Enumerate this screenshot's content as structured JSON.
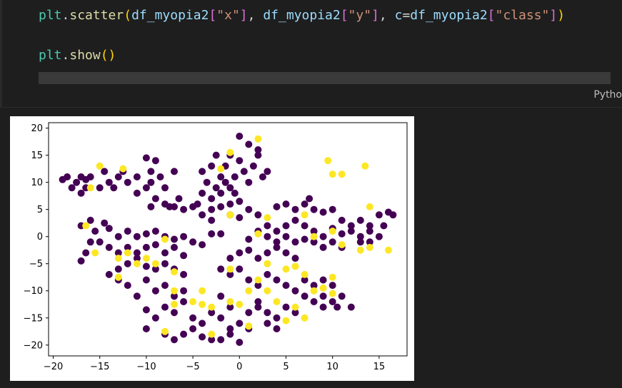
{
  "cell": {
    "code_lines": [
      [
        {
          "t": "plt",
          "c": "tok-var"
        },
        {
          "t": ".",
          "c": "tok-punc"
        },
        {
          "t": "scatter",
          "c": "tok-func"
        },
        {
          "t": "(",
          "c": "tok-bracket"
        },
        {
          "t": "df_myopia2",
          "c": "tok-ident"
        },
        {
          "t": "[",
          "c": "tok-bracket2"
        },
        {
          "t": "\"x\"",
          "c": "tok-str"
        },
        {
          "t": "]",
          "c": "tok-bracket2"
        },
        {
          "t": ", ",
          "c": "tok-punc"
        },
        {
          "t": "df_myopia2",
          "c": "tok-ident"
        },
        {
          "t": "[",
          "c": "tok-bracket2"
        },
        {
          "t": "\"y\"",
          "c": "tok-str"
        },
        {
          "t": "]",
          "c": "tok-bracket2"
        },
        {
          "t": ", ",
          "c": "tok-punc"
        },
        {
          "t": "c",
          "c": "tok-kw"
        },
        {
          "t": "=",
          "c": "tok-punc"
        },
        {
          "t": "df_myopia2",
          "c": "tok-ident"
        },
        {
          "t": "[",
          "c": "tok-bracket2"
        },
        {
          "t": "\"class\"",
          "c": "tok-str"
        },
        {
          "t": "]",
          "c": "tok-bracket2"
        },
        {
          "t": ")",
          "c": "tok-bracket"
        }
      ],
      [],
      [
        {
          "t": "plt",
          "c": "tok-var"
        },
        {
          "t": ".",
          "c": "tok-punc"
        },
        {
          "t": "show",
          "c": "tok-func"
        },
        {
          "t": "()",
          "c": "tok-bracket"
        }
      ]
    ],
    "language_label": "Pytho"
  },
  "chart_data": {
    "type": "scatter",
    "title": "",
    "xlabel": "",
    "ylabel": "",
    "xlim": [
      -20.5,
      18
    ],
    "ylim": [
      -22,
      21
    ],
    "xticks": [
      -20,
      -15,
      -10,
      -5,
      0,
      5,
      10,
      15
    ],
    "yticks": [
      -20,
      -15,
      -10,
      -5,
      0,
      5,
      10,
      15,
      20
    ],
    "grid": false,
    "colors": {
      "class_0": "#440154",
      "class_1": "#fde725"
    },
    "series": [
      {
        "values_xy": [
          [
            -19,
            10.5
          ],
          [
            -18.5,
            11
          ],
          [
            -18,
            9
          ],
          [
            -17.5,
            10
          ],
          [
            -17,
            11
          ],
          [
            -16.5,
            10.5
          ],
          [
            -16,
            11
          ],
          [
            -16.5,
            9
          ],
          [
            -17,
            8
          ],
          [
            -15,
            9
          ],
          [
            -14,
            10
          ],
          [
            -13.5,
            9
          ],
          [
            -14.5,
            12
          ],
          [
            -13,
            11
          ],
          [
            -12.5,
            12
          ],
          [
            -12,
            10
          ],
          [
            -11,
            11
          ],
          [
            -10,
            14.5
          ],
          [
            -9.5,
            12
          ],
          [
            -9,
            14
          ],
          [
            -9.5,
            10
          ],
          [
            -10,
            9
          ],
          [
            -11,
            8
          ],
          [
            -9,
            7
          ],
          [
            -9.5,
            5.5
          ],
          [
            -8,
            6
          ],
          [
            -7.5,
            5.5
          ],
          [
            -8,
            9
          ],
          [
            -8.5,
            11
          ],
          [
            -7,
            12
          ],
          [
            -4,
            12
          ],
          [
            -3.5,
            10
          ],
          [
            -3,
            13
          ],
          [
            -2.5,
            15
          ],
          [
            -2,
            11
          ],
          [
            -1.5,
            13
          ],
          [
            -1,
            9
          ],
          [
            -0.5,
            11
          ],
          [
            0,
            14
          ],
          [
            0.5,
            12
          ],
          [
            1,
            10
          ],
          [
            1.5,
            13
          ],
          [
            2,
            15
          ],
          [
            2.5,
            11
          ],
          [
            3,
            12
          ],
          [
            2,
            16
          ],
          [
            1,
            17
          ],
          [
            0,
            18.5
          ],
          [
            -1,
            15
          ],
          [
            -2,
            8
          ],
          [
            -3,
            7
          ],
          [
            -4,
            8
          ],
          [
            -4.5,
            6
          ],
          [
            -3,
            5
          ],
          [
            -2,
            5.5
          ],
          [
            -1,
            6
          ],
          [
            0,
            6.5
          ],
          [
            -0.5,
            8
          ],
          [
            -1.5,
            10
          ],
          [
            -2.5,
            9
          ],
          [
            -5,
            5.5
          ],
          [
            -6,
            5
          ],
          [
            -7,
            5.5
          ],
          [
            -6.5,
            7
          ],
          [
            -4,
            4
          ],
          [
            -3,
            3
          ],
          [
            -1,
            4
          ],
          [
            0,
            3.5
          ],
          [
            1,
            5
          ],
          [
            2,
            4
          ],
          [
            4,
            5.5
          ],
          [
            5,
            6
          ],
          [
            6,
            5
          ],
          [
            7,
            6
          ],
          [
            7.5,
            7
          ],
          [
            8,
            5
          ],
          [
            9,
            4.5
          ],
          [
            10,
            5
          ],
          [
            11,
            3
          ],
          [
            12,
            2
          ],
          [
            13,
            3
          ],
          [
            14,
            2
          ],
          [
            15,
            4
          ],
          [
            16,
            4.5
          ],
          [
            16.5,
            4
          ],
          [
            15.5,
            2
          ],
          [
            3,
            2
          ],
          [
            4,
            1
          ],
          [
            5,
            2
          ],
          [
            6,
            3
          ],
          [
            7,
            2
          ],
          [
            8,
            1
          ],
          [
            9,
            0
          ],
          [
            10,
            1.5
          ],
          [
            11,
            0.5
          ],
          [
            12,
            1
          ],
          [
            13,
            0
          ],
          [
            14,
            1
          ],
          [
            15,
            0
          ],
          [
            14,
            -1
          ],
          [
            13,
            -1
          ],
          [
            11,
            -2
          ],
          [
            10,
            -1
          ],
          [
            9,
            -2
          ],
          [
            8,
            -1
          ],
          [
            7,
            -0.5
          ],
          [
            6,
            -1
          ],
          [
            5,
            0
          ],
          [
            4,
            -1
          ],
          [
            3,
            0
          ],
          [
            2,
            1
          ],
          [
            1,
            -0.5
          ],
          [
            -17,
            2
          ],
          [
            -16,
            3
          ],
          [
            -15.5,
            1
          ],
          [
            -14.5,
            2.5
          ],
          [
            -14,
            1.5
          ],
          [
            -13,
            0
          ],
          [
            -12,
            1
          ],
          [
            -11,
            0
          ],
          [
            -10,
            0.5
          ],
          [
            -9,
            1
          ],
          [
            -8,
            0
          ],
          [
            -7,
            -0.5
          ],
          [
            -6,
            0
          ],
          [
            -5,
            -1
          ],
          [
            -4,
            -1.5
          ],
          [
            -3,
            0.5
          ],
          [
            -2,
            0.5
          ],
          [
            -15,
            -1
          ],
          [
            -14,
            -2
          ],
          [
            -13,
            -3
          ],
          [
            -12,
            -2
          ],
          [
            -11,
            -3
          ],
          [
            -10,
            -2
          ],
          [
            -9,
            -1.5
          ],
          [
            -8,
            -3
          ],
          [
            -7,
            -2
          ],
          [
            -6,
            -3.5
          ],
          [
            -16,
            -1
          ],
          [
            -16.5,
            -3
          ],
          [
            -17,
            -4.5
          ],
          [
            -14,
            -7
          ],
          [
            -13,
            -6
          ],
          [
            -12,
            -5
          ],
          [
            -11,
            -4
          ],
          [
            -10,
            -5.5
          ],
          [
            -9,
            -6
          ],
          [
            -8,
            -5
          ],
          [
            -7,
            -6
          ],
          [
            -6,
            -7
          ],
          [
            -10,
            -8
          ],
          [
            -9,
            -10
          ],
          [
            -8,
            -9
          ],
          [
            -7,
            -11
          ],
          [
            -6,
            -10
          ],
          [
            -11,
            -11
          ],
          [
            -12,
            -9
          ],
          [
            -13,
            -8
          ],
          [
            -2,
            -6
          ],
          [
            -1,
            -4
          ],
          [
            0,
            -3
          ],
          [
            1,
            -2.5
          ],
          [
            2,
            -4
          ],
          [
            3,
            -3
          ],
          [
            4,
            -2
          ],
          [
            5,
            -3
          ],
          [
            6,
            -4
          ],
          [
            -1,
            -7
          ],
          [
            0,
            -6
          ],
          [
            1,
            -8
          ],
          [
            2,
            -9
          ],
          [
            3,
            -7
          ],
          [
            4,
            -8
          ],
          [
            5,
            -9
          ],
          [
            6,
            -10
          ],
          [
            7,
            -11
          ],
          [
            8,
            -12
          ],
          [
            9,
            -13
          ],
          [
            10,
            -12
          ],
          [
            11,
            -11
          ],
          [
            12,
            -13
          ],
          [
            7,
            -8
          ],
          [
            8,
            -9
          ],
          [
            9,
            -8
          ],
          [
            10,
            -9
          ],
          [
            -8,
            -13
          ],
          [
            -7,
            -14
          ],
          [
            -6,
            -12
          ],
          [
            -5,
            -15
          ],
          [
            -4,
            -16
          ],
          [
            -3,
            -14
          ],
          [
            -2,
            -15
          ],
          [
            -1,
            -17
          ],
          [
            0,
            -16
          ],
          [
            1,
            -14
          ],
          [
            2,
            -13
          ],
          [
            3,
            -14
          ],
          [
            4,
            -15
          ],
          [
            5,
            -13
          ],
          [
            -9,
            -15
          ],
          [
            -10,
            -17
          ],
          [
            -8,
            -18
          ],
          [
            -6,
            -18
          ],
          [
            -5,
            -17
          ],
          [
            -4,
            -18.5
          ],
          [
            -2,
            -19
          ],
          [
            -1,
            -18
          ],
          [
            0,
            -19.5
          ],
          [
            1,
            -17
          ],
          [
            3,
            -16
          ],
          [
            4,
            -17
          ],
          [
            -10,
            -13.5
          ],
          [
            -7,
            -19
          ],
          [
            -3,
            -19
          ],
          [
            2,
            -12
          ],
          [
            -2,
            -11
          ],
          [
            -1,
            -13
          ],
          [
            6,
            -14
          ],
          [
            9,
            -11
          ],
          [
            10.5,
            -13
          ]
        ],
        "class": 0
      },
      {
        "values_xy": [
          [
            -15,
            13
          ],
          [
            -12.5,
            12.5
          ],
          [
            -16,
            9
          ],
          [
            -2,
            12.5
          ],
          [
            -1,
            15.5
          ],
          [
            2,
            18
          ],
          [
            9.5,
            14
          ],
          [
            10,
            11.5
          ],
          [
            11,
            11.5
          ],
          [
            13.5,
            13
          ],
          [
            -16.5,
            2
          ],
          [
            -15.5,
            -3
          ],
          [
            -13,
            -4
          ],
          [
            -12,
            -3
          ],
          [
            -7,
            -6.5
          ],
          [
            -13,
            -7.5
          ],
          [
            -7,
            -10
          ],
          [
            -7,
            -12.5
          ],
          [
            -5,
            -12
          ],
          [
            -3,
            -13
          ],
          [
            -3,
            -18
          ],
          [
            -4,
            -12.5
          ],
          [
            -1,
            -12
          ],
          [
            0,
            -12.5
          ],
          [
            1,
            -16.5
          ],
          [
            -8,
            -17.5
          ],
          [
            3,
            -10
          ],
          [
            4,
            -12
          ],
          [
            5,
            -6
          ],
          [
            6,
            -5.5
          ],
          [
            7,
            -7
          ],
          [
            8,
            -10
          ],
          [
            9,
            -9.5
          ],
          [
            10,
            -10.5
          ],
          [
            10,
            -7.5
          ],
          [
            5,
            -15.5
          ],
          [
            6,
            -13
          ],
          [
            7,
            -15
          ],
          [
            1,
            -10
          ],
          [
            2,
            -8
          ],
          [
            3,
            -5
          ],
          [
            -1,
            -6
          ],
          [
            -4,
            -10
          ],
          [
            -1,
            4
          ],
          [
            3,
            3.5
          ],
          [
            7,
            4
          ],
          [
            10,
            1
          ],
          [
            11,
            -1.5
          ],
          [
            13,
            -2.5
          ],
          [
            14,
            -2
          ],
          [
            16,
            -2.5
          ],
          [
            14,
            5.5
          ],
          [
            8,
            0
          ],
          [
            2,
            0.5
          ],
          [
            -8,
            -0.5
          ],
          [
            -10,
            -4
          ],
          [
            -11,
            -5
          ],
          [
            -9,
            -5
          ]
        ],
        "class": 1
      }
    ]
  }
}
